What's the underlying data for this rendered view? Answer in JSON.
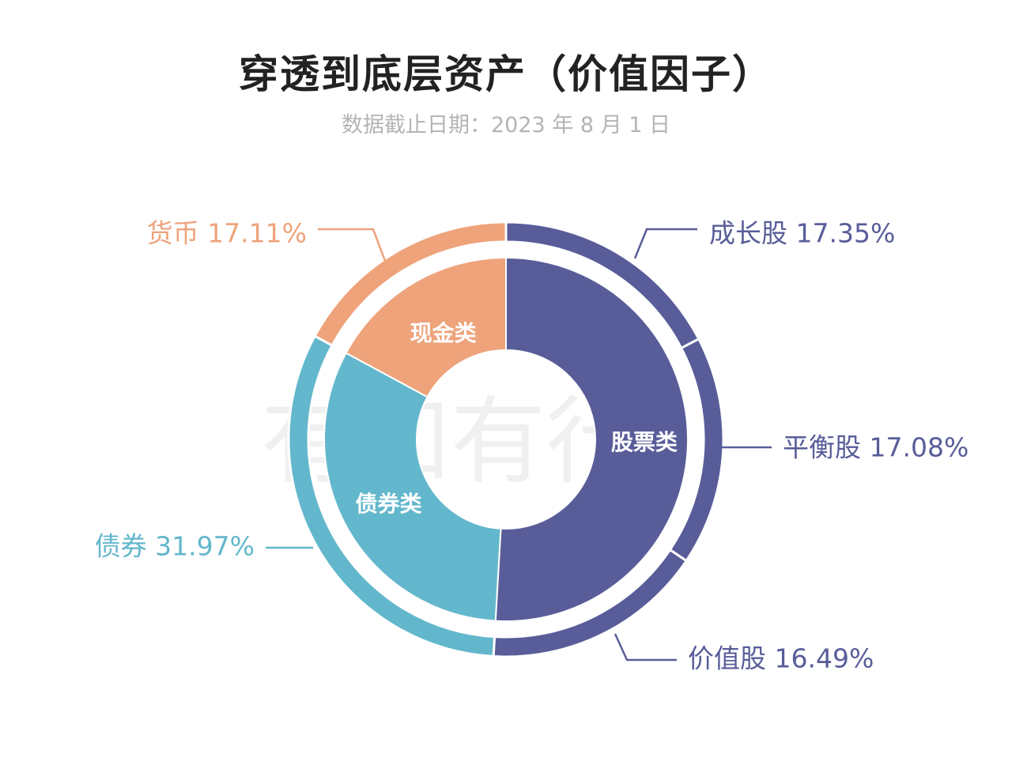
{
  "title": "穿透到底层资产（价值因子）",
  "subtitle": "数据截止日期：2023 年 8 月 1 日",
  "watermark": "有知有行",
  "colors": {
    "equity": "#585d99",
    "bond": "#63b7cc",
    "cash": "#eea37b"
  },
  "chart_data": {
    "type": "pie",
    "inner_ring": {
      "categories": [
        "股票类",
        "债券类",
        "现金类"
      ],
      "values": [
        50.92,
        31.97,
        17.11
      ],
      "colors": [
        "#585d99",
        "#63b7cc",
        "#eea37b"
      ]
    },
    "outer_ring": {
      "categories": [
        "成长股",
        "平衡股",
        "价值股",
        "债券",
        "货币"
      ],
      "values": [
        17.35,
        17.08,
        16.49,
        31.97,
        17.11
      ],
      "labels": [
        "成长股 17.35%",
        "平衡股 17.08%",
        "价值股 16.49%",
        "债券 31.97%",
        "货币 17.11%"
      ],
      "colors": [
        "#585d99",
        "#585d99",
        "#585d99",
        "#63b7cc",
        "#eea37b"
      ]
    }
  }
}
